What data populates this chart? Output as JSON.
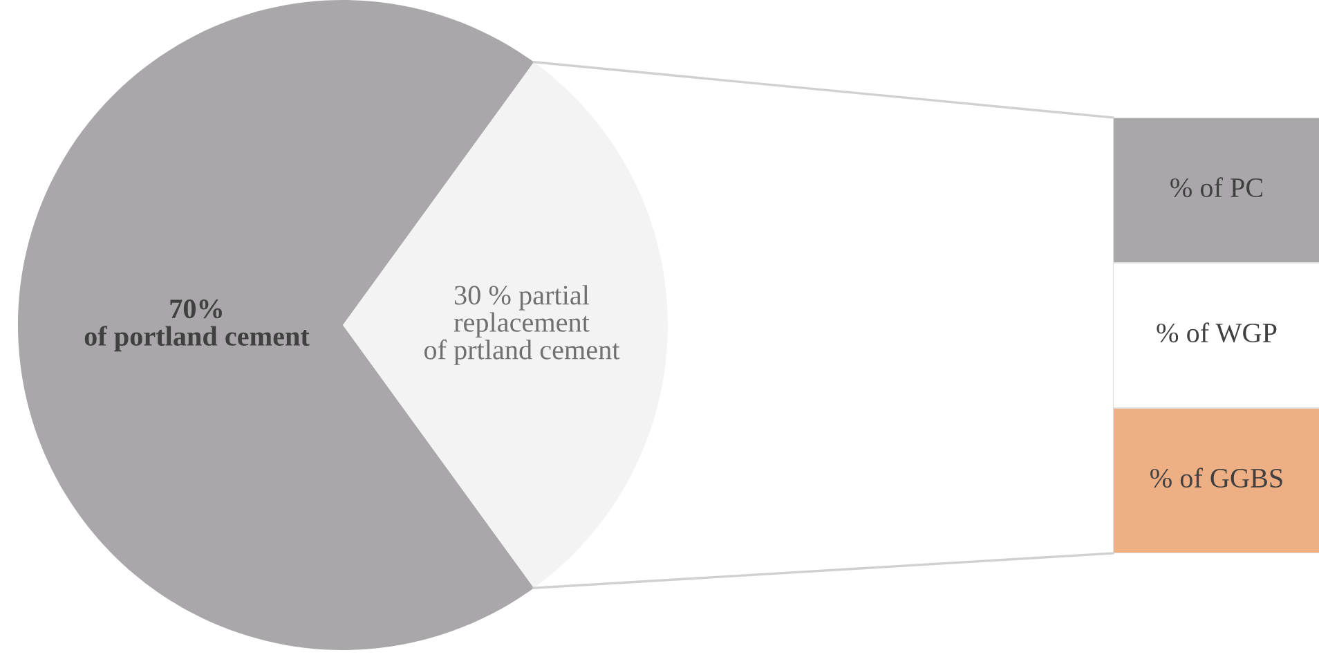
{
  "chart_data": [
    {
      "type": "pie",
      "categories": [
        "70%\nof portland cement",
        "30 % partial\nreplacement\nof prtland cement"
      ],
      "values": [
        70,
        30
      ],
      "colors": [
        "#aaa7aa",
        "#f2f3f2"
      ]
    },
    {
      "type": "other",
      "annotations": [
        "% of PC",
        "% of WGP",
        "% of GGBS"
      ],
      "colors": [
        "#aaa7aa",
        "#ffffff",
        "#eeaf84"
      ]
    }
  ]
}
